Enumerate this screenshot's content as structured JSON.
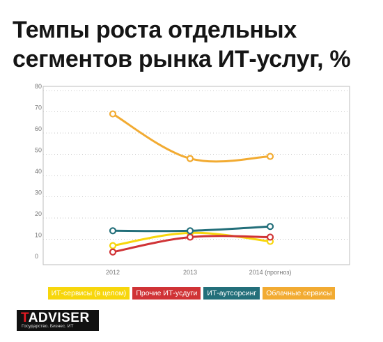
{
  "title": {
    "line1": "Темпы роста отдельных",
    "line2": "сегментов рынка ИТ-услуг, %"
  },
  "chart_data": {
    "type": "line",
    "title": "Темпы роста отдельных сегментов рынка ИТ-услуг, %",
    "categories": [
      "2012",
      "2013",
      "2014 (прогноз)"
    ],
    "yticks": [
      0,
      10,
      20,
      30,
      40,
      50,
      60,
      70,
      80
    ],
    "ylim": [
      0,
      80
    ],
    "grid": "horizontal dashed",
    "legend_position": "bottom",
    "series": [
      {
        "name": "ИТ-сервисы (в целом)",
        "color": "#f7d60c",
        "values": [
          7,
          13,
          9
        ]
      },
      {
        "name": "Прочие ИТ-усдуги",
        "color": "#d03336",
        "values": [
          4,
          11,
          11
        ]
      },
      {
        "name": "ИТ-аутсорсинг",
        "color": "#236f7a",
        "values": [
          14,
          14,
          16
        ]
      },
      {
        "name": "Облачные сервисы",
        "color": "#f2ab32",
        "values": [
          69,
          48,
          49
        ]
      }
    ]
  },
  "logo": {
    "letter": "T",
    "rest": "ADVISER",
    "tagline": "Государство. Бизнес. ИТ"
  }
}
